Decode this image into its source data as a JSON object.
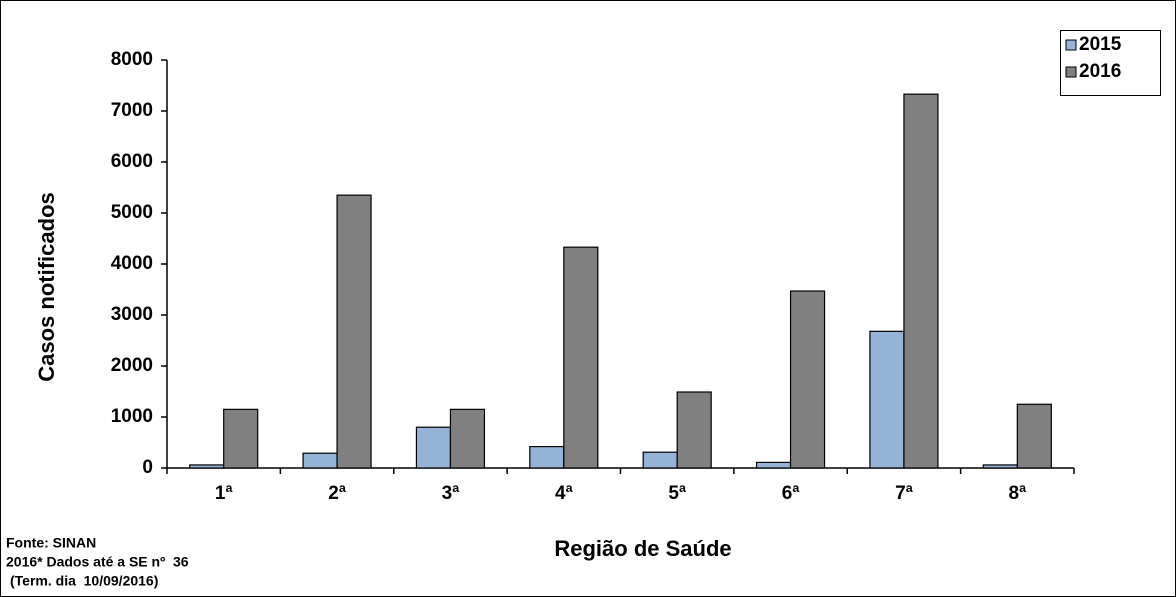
{
  "chart_data": {
    "type": "bar",
    "x_label": "Região de Saúde",
    "y_label": "Casos notificados",
    "categories": [
      "1ª",
      "2ª",
      "3ª",
      "4ª",
      "5ª",
      "6ª",
      "7ª",
      "8ª"
    ],
    "series": [
      {
        "name": "2015",
        "color": "#95b3d7",
        "values": [
          60,
          290,
          800,
          420,
          310,
          110,
          2680,
          60
        ]
      },
      {
        "name": "2016",
        "color": "#808080",
        "values": [
          1150,
          5350,
          1150,
          4330,
          1490,
          3470,
          7330,
          1250
        ]
      }
    ],
    "ylim": [
      0,
      8000
    ],
    "yticks": [
      0,
      1000,
      2000,
      3000,
      4000,
      5000,
      6000,
      7000,
      8000
    ],
    "grid": false,
    "legend": "top-right",
    "notes": [
      "Fonte: SINAN",
      "2016* Dados até a SE nº  36",
      "(Term. dia  10/09/2016)"
    ]
  }
}
